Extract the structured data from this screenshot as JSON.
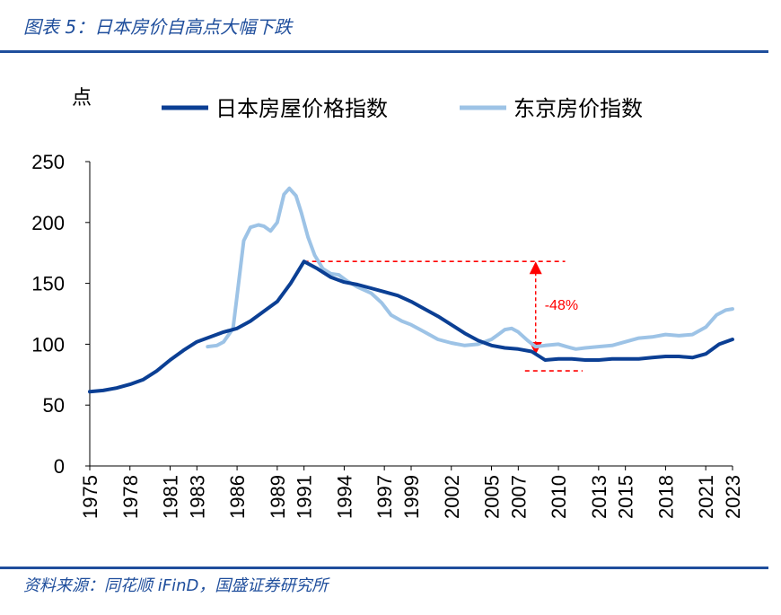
{
  "figure": {
    "title": "图表 5：日本房价自高点大幅下跌",
    "source": "资料来源：同花顺 iFinD，国盛证券研究所"
  },
  "chart_data": {
    "type": "line",
    "ylabel": "点",
    "ylim": [
      0,
      250
    ],
    "yticks": [
      0,
      50,
      100,
      150,
      200,
      250
    ],
    "xlim": [
      1975,
      2023
    ],
    "xticks": [
      1975,
      1978,
      1981,
      1983,
      1986,
      1989,
      1991,
      1994,
      1997,
      1999,
      2002,
      2005,
      2007,
      2010,
      2013,
      2015,
      2018,
      2021,
      2023
    ],
    "legend_position": "top",
    "grid": false,
    "series": [
      {
        "name": "日本房屋价格指数",
        "color": "#0b3f94",
        "points": [
          [
            1975,
            61
          ],
          [
            1976,
            62
          ],
          [
            1977,
            64
          ],
          [
            1978,
            67
          ],
          [
            1979,
            71
          ],
          [
            1980,
            78
          ],
          [
            1981,
            87
          ],
          [
            1982,
            95
          ],
          [
            1983,
            102
          ],
          [
            1984,
            106
          ],
          [
            1985,
            110
          ],
          [
            1986,
            113
          ],
          [
            1987,
            119
          ],
          [
            1988,
            127
          ],
          [
            1989,
            135
          ],
          [
            1990,
            150
          ],
          [
            1991,
            168
          ],
          [
            1992,
            162
          ],
          [
            1993,
            155
          ],
          [
            1994,
            151
          ],
          [
            1995,
            149
          ],
          [
            1996,
            146
          ],
          [
            1997,
            143
          ],
          [
            1998,
            140
          ],
          [
            1999,
            135
          ],
          [
            2000,
            129
          ],
          [
            2001,
            123
          ],
          [
            2002,
            116
          ],
          [
            2003,
            109
          ],
          [
            2004,
            103
          ],
          [
            2005,
            99
          ],
          [
            2006,
            97
          ],
          [
            2007,
            96
          ],
          [
            2008,
            94
          ],
          [
            2009,
            87
          ],
          [
            2010,
            88
          ],
          [
            2011,
            88
          ],
          [
            2012,
            87
          ],
          [
            2013,
            87
          ],
          [
            2014,
            88
          ],
          [
            2015,
            88
          ],
          [
            2016,
            88
          ],
          [
            2017,
            89
          ],
          [
            2018,
            90
          ],
          [
            2019,
            90
          ],
          [
            2020,
            89
          ],
          [
            2021,
            92
          ],
          [
            2022,
            100
          ],
          [
            2023,
            104
          ]
        ]
      },
      {
        "name": "东京房价指数",
        "color": "#9dc3e6",
        "points": [
          [
            1983.8,
            98
          ],
          [
            1984.5,
            99
          ],
          [
            1985,
            102
          ],
          [
            1985.7,
            113
          ],
          [
            1986,
            140
          ],
          [
            1986.5,
            185
          ],
          [
            1987,
            196
          ],
          [
            1987.6,
            198
          ],
          [
            1988,
            197
          ],
          [
            1988.5,
            193
          ],
          [
            1989,
            200
          ],
          [
            1989.5,
            223
          ],
          [
            1989.9,
            228
          ],
          [
            1990.4,
            222
          ],
          [
            1990.8,
            208
          ],
          [
            1991.3,
            188
          ],
          [
            1991.8,
            173
          ],
          [
            1992.4,
            162
          ],
          [
            1993,
            158
          ],
          [
            1993.6,
            157
          ],
          [
            1994.2,
            152
          ],
          [
            1995,
            147
          ],
          [
            1996,
            142
          ],
          [
            1996.8,
            134
          ],
          [
            1997.5,
            124
          ],
          [
            1998.3,
            119
          ],
          [
            1999,
            116
          ],
          [
            2000,
            110
          ],
          [
            2001,
            104
          ],
          [
            2002,
            101
          ],
          [
            2003,
            99
          ],
          [
            2004,
            100
          ],
          [
            2005,
            104
          ],
          [
            2005.5,
            108
          ],
          [
            2006,
            112
          ],
          [
            2006.5,
            113
          ],
          [
            2007,
            110
          ],
          [
            2007.7,
            103
          ],
          [
            2008.3,
            98
          ],
          [
            2009,
            99
          ],
          [
            2010,
            100
          ],
          [
            2010.6,
            98
          ],
          [
            2011.3,
            96
          ],
          [
            2012,
            97
          ],
          [
            2013,
            98
          ],
          [
            2014,
            99
          ],
          [
            2015,
            102
          ],
          [
            2016,
            105
          ],
          [
            2017,
            106
          ],
          [
            2018,
            108
          ],
          [
            2019,
            107
          ],
          [
            2020,
            108
          ],
          [
            2021,
            114
          ],
          [
            2021.8,
            124
          ],
          [
            2022.5,
            128
          ],
          [
            2023,
            129
          ]
        ]
      }
    ],
    "annotation": {
      "label": "-48%",
      "color": "#ff0000",
      "peak_value": 168,
      "trough_value": 87,
      "arrow_year": 2008.3,
      "peak_line": [
        1991,
        2010.5
      ],
      "trough_line": [
        2007.5,
        2011.8
      ]
    }
  }
}
